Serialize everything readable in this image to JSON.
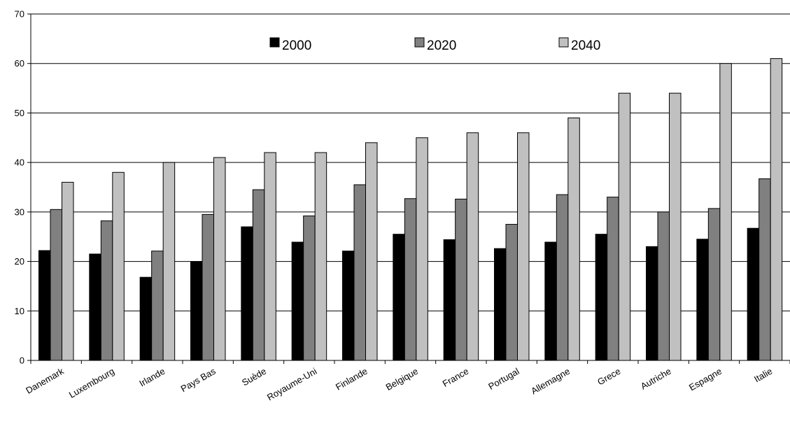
{
  "chart_data": {
    "type": "bar",
    "title": "",
    "xlabel": "",
    "ylabel": "",
    "ylim": [
      0,
      70
    ],
    "yticks": [
      0,
      10,
      20,
      30,
      40,
      50,
      60,
      70
    ],
    "grid": "horizontal",
    "legend_position": "top-center",
    "categories": [
      "Danemark",
      "Luxembourg",
      "Irlande",
      "Pays Bas",
      "Suède",
      "Royaume-Uni",
      "Finlande",
      "Belgique",
      "France",
      "Portugal",
      "Allemagne",
      "Grece",
      "Autriche",
      "Espagne",
      "Italie"
    ],
    "series": [
      {
        "name": "2000",
        "color": "#000000",
        "values": [
          22.2,
          21.5,
          16.8,
          20.0,
          27.0,
          23.9,
          22.1,
          25.5,
          24.4,
          22.6,
          23.9,
          25.5,
          23.0,
          24.5,
          26.7
        ]
      },
      {
        "name": "2020",
        "color": "#808080",
        "values": [
          30.5,
          28.2,
          22.1,
          29.5,
          34.5,
          29.2,
          35.5,
          32.7,
          32.6,
          27.5,
          33.5,
          33.0,
          30.0,
          30.7,
          36.7
        ]
      },
      {
        "name": "2040",
        "color": "#c0c0c0",
        "values": [
          36.0,
          38.0,
          40.0,
          41.0,
          42.0,
          42.0,
          44.0,
          45.0,
          46.0,
          46.0,
          49.0,
          54.0,
          54.0,
          60.0,
          61.0
        ]
      }
    ]
  }
}
